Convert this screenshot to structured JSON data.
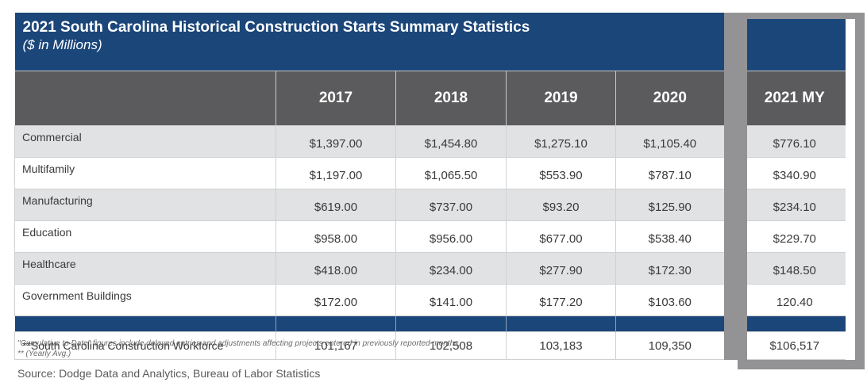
{
  "table": {
    "title": "2021 South Carolina Historical Construction Starts Summary Statistics",
    "subtitle": "($ in Millions)",
    "columns": [
      "2017",
      "2018",
      "2019",
      "2020",
      "2021 MY"
    ],
    "rows": [
      {
        "label": "Commercial",
        "values": [
          "$1,397.00",
          "$1,454.80",
          "$1,275.10",
          "$1,105.40",
          "$776.10"
        ]
      },
      {
        "label": "Multifamily",
        "values": [
          "$1,197.00",
          "$1,065.50",
          "$553.90",
          "$787.10",
          "$340.90"
        ]
      },
      {
        "label": "Manufacturing",
        "values": [
          "$619.00",
          "$737.00",
          "$93.20",
          "$125.90",
          "$234.10"
        ]
      },
      {
        "label": "Education",
        "values": [
          "$958.00",
          "$956.00",
          "$677.00",
          "$538.40",
          "$229.70"
        ]
      },
      {
        "label": "Healthcare",
        "values": [
          "$418.00",
          "$234.00",
          "$277.90",
          "$172.30",
          "$148.50"
        ]
      },
      {
        "label": "Government Buildings",
        "values": [
          "$172.00",
          "$141.00",
          "$177.20",
          "$103.60",
          "120.40"
        ]
      }
    ],
    "workforce": {
      "label": "**South Carolina Construction Workforce",
      "values": [
        "101,167",
        "102,508",
        "103,183",
        "109,350",
        "$106,517"
      ]
    },
    "colors": {
      "header_blue": "#1b4679",
      "header_gray": "#5b5b5d",
      "row_shade": "#e1e2e4",
      "highlight_frame": "#939396"
    }
  },
  "footer": {
    "note1": "\"Cumulative to Date\" figures include delayed entries and adjustments affecting projects entered in previously reported months.",
    "note2": "** (Yearly Avg.)",
    "source": "Source: Dodge Data and Analytics, Bureau of Labor Statistics"
  }
}
